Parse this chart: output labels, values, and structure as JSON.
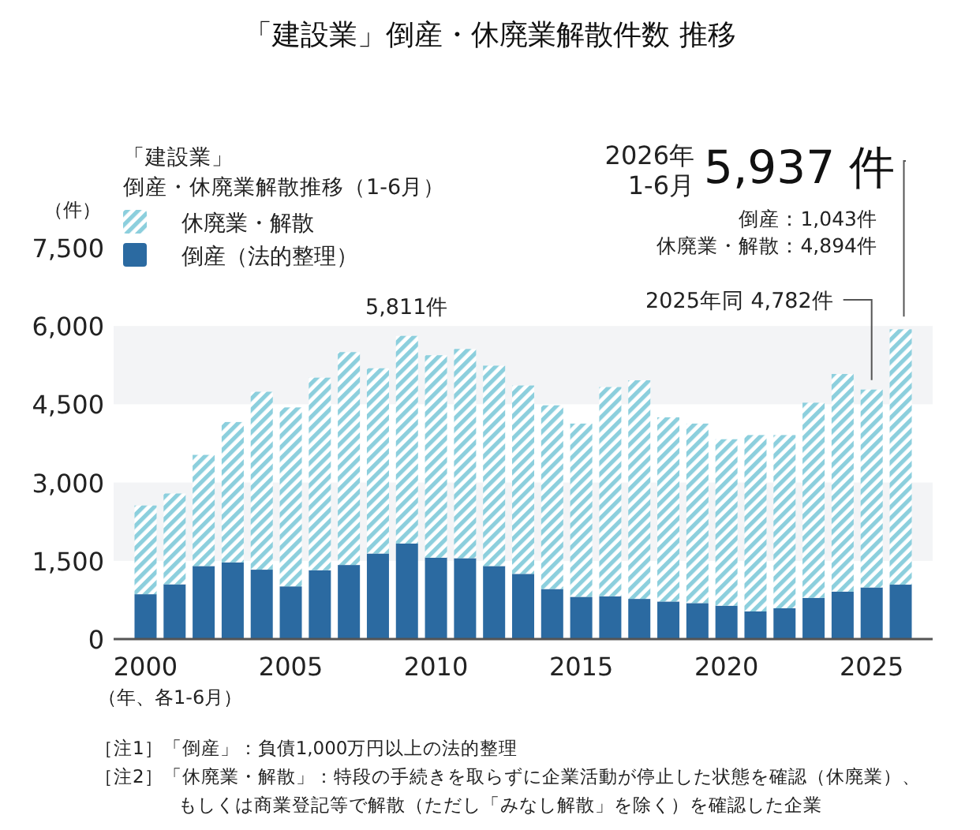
{
  "chart_data": {
    "type": "bar",
    "stacked": true,
    "title": "「建設業」倒産・休廃業解散件数 推移",
    "legend_title": "「建設業」倒産・休廃業解散推移（1-6月）",
    "ylabel": "（件）",
    "xlabel": "（年、各1-6月）",
    "x": [
      2000,
      2001,
      2002,
      2003,
      2004,
      2005,
      2006,
      2007,
      2008,
      2009,
      2010,
      2011,
      2012,
      2013,
      2014,
      2015,
      2016,
      2017,
      2018,
      2019,
      2020,
      2021,
      2022,
      2023,
      2024,
      2025,
      2026
    ],
    "series": [
      {
        "name": "倒産（法的整理）",
        "color": "#2b6aa1",
        "values": [
          860,
          1050,
          1400,
          1470,
          1330,
          1010,
          1320,
          1420,
          1640,
          1830,
          1560,
          1550,
          1400,
          1250,
          960,
          810,
          820,
          770,
          720,
          690,
          640,
          530,
          590,
          790,
          910,
          990,
          1043
        ]
      },
      {
        "name": "休廃業・解散",
        "color": "#8ccfdd",
        "values": [
          1700,
          1740,
          2130,
          2690,
          3410,
          3430,
          3690,
          4080,
          3550,
          3981,
          3880,
          4010,
          3840,
          3610,
          3520,
          3320,
          4010,
          4190,
          3530,
          3440,
          3190,
          3380,
          3320,
          3740,
          4170,
          3792,
          4894
        ]
      }
    ],
    "xlim": [
      1998.9,
      2027.1
    ],
    "xticks": [
      2000,
      2005,
      2010,
      2015,
      2020,
      2025
    ],
    "ylim": [
      0,
      7500
    ],
    "yticks": [
      0,
      {
        "value": 1500,
        "label": "1,500"
      },
      {
        "value": 3000,
        "label": "3,000"
      },
      {
        "value": 4500,
        "label": "4,500"
      },
      {
        "value": 6000,
        "label": "6,000"
      },
      {
        "value": 7500,
        "label": "7,500"
      }
    ],
    "bands": [
      {
        "axis": "y",
        "from": 1500,
        "to": 3000,
        "color": "#f3f4f6"
      },
      {
        "axis": "y",
        "from": 4500,
        "to": 6000,
        "color": "#f3f4f6"
      }
    ],
    "legend": "top left",
    "annotations": [
      {
        "text": "5,811件",
        "x": 2009,
        "y": 5811
      },
      {
        "text": "2025年同  4,782件",
        "x": 2025,
        "y": 4782
      },
      {
        "text": "5,937 件",
        "x": 2026,
        "y": 5937
      },
      "2026年1-6月",
      "倒産：1,043件",
      "休廃業・解散：4,894件",
      "［注1］「倒産」：負債1,000万円以上の法的整理",
      "［注2］「休廃業・解散」：特段の手続きを取らずに企業活動が停止した状態を確認（休廃業）、もしくは商業登記等で解散（ただし「みなし解散」を除く）を確認した企業"
    ]
  }
}
